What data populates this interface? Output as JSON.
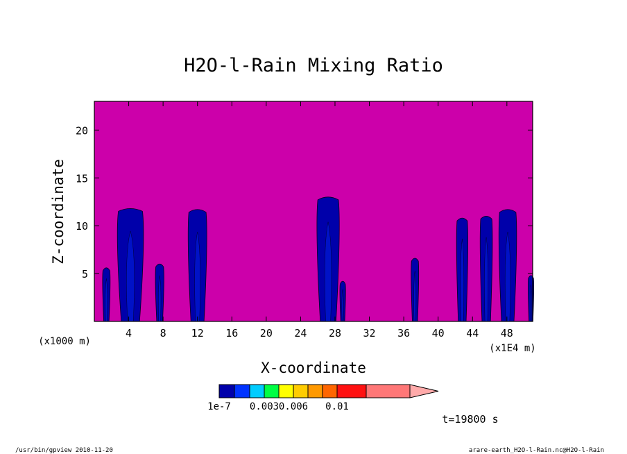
{
  "chart_data": {
    "type": "heatmap",
    "title": "H2O-l-Rain Mixing Ratio",
    "xlabel": "X-coordinate",
    "ylabel": "Z-coordinate",
    "x_unit_left": "(x1000 m)",
    "x_unit_right": "(x1E4 m)",
    "xlim": [
      0,
      51
    ],
    "ylim": [
      0,
      23
    ],
    "x_ticks": [
      4,
      8,
      12,
      16,
      20,
      24,
      28,
      32,
      36,
      40,
      44,
      48
    ],
    "y_ticks": [
      5,
      10,
      15,
      20
    ],
    "background_color": "#cc00aa",
    "colorbar": {
      "colors": [
        "#0000aa",
        "#0033ff",
        "#00ccff",
        "#00ff44",
        "#ffff00",
        "#ffcc00",
        "#ff9900",
        "#ff6600",
        "#ff1111",
        "#ff7777",
        "#ffaaaa"
      ],
      "labels": [
        "1e-7",
        "0.003",
        "0.006",
        "0.01"
      ],
      "label_levels": [
        0,
        3,
        5,
        8
      ]
    },
    "cells": [
      {
        "x": 1.4,
        "top": 5.6,
        "halfwidth": 0.4
      },
      {
        "x": 4.2,
        "top": 11.8,
        "halfwidth": 1.4
      },
      {
        "x": 7.6,
        "top": 6.0,
        "halfwidth": 0.45
      },
      {
        "x": 12.0,
        "top": 11.7,
        "halfwidth": 1.0
      },
      {
        "x": 27.2,
        "top": 13.0,
        "halfwidth": 1.2
      },
      {
        "x": 28.9,
        "top": 4.2,
        "halfwidth": 0.3
      },
      {
        "x": 37.3,
        "top": 6.6,
        "halfwidth": 0.4
      },
      {
        "x": 42.8,
        "top": 10.8,
        "halfwidth": 0.6
      },
      {
        "x": 45.6,
        "top": 11.0,
        "halfwidth": 0.65
      },
      {
        "x": 48.1,
        "top": 11.7,
        "halfwidth": 0.95
      },
      {
        "x": 50.8,
        "top": 4.8,
        "halfwidth": 0.3
      }
    ]
  },
  "annotations": {
    "time": "t=19800 s",
    "footer_left": "/usr/bin/gpview  2010-11-20",
    "footer_right": "arare-earth_H2O-l-Rain.nc@H2O-l-Rain"
  }
}
